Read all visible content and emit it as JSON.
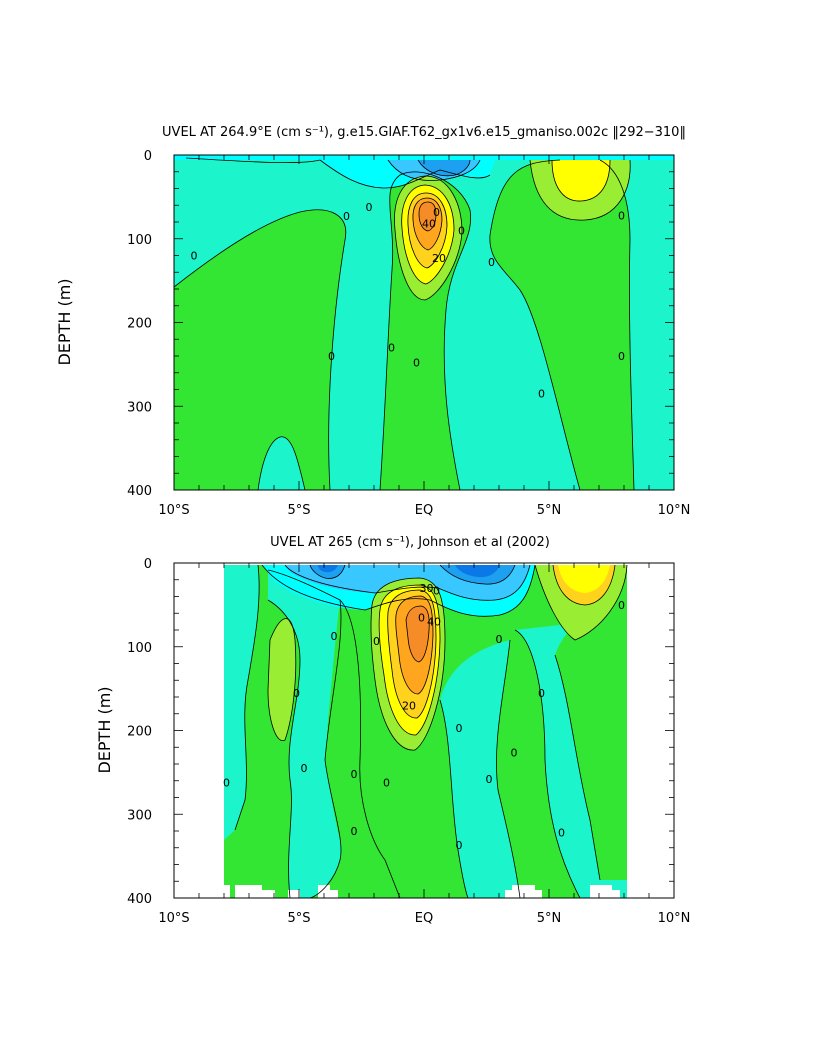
{
  "chart_data": [
    {
      "type": "heatmap",
      "title": "UVEL AT 264.9°E (cm s⁻¹), g.e15.GIAF.T62_gx1v6.e15_gmaniso.002c ‖292−310‖",
      "ylabel": "DEPTH (m)",
      "xlabel": "",
      "xlim": [
        -10,
        10
      ],
      "ylim": [
        400,
        0
      ],
      "xtick_labels": [
        "10°S",
        "5°S",
        "EQ",
        "5°N",
        "10°N"
      ],
      "ytick_labels": [
        "0",
        "100",
        "200",
        "300",
        "400"
      ],
      "contour_labels": [
        {
          "x": -9.2,
          "y": 120,
          "text": "0"
        },
        {
          "x": -3.1,
          "y": 73,
          "text": "0"
        },
        {
          "x": -2.2,
          "y": 62,
          "text": "0"
        },
        {
          "x": -1.3,
          "y": 230,
          "text": "0"
        },
        {
          "x": -0.3,
          "y": 248,
          "text": "0"
        },
        {
          "x": 1.5,
          "y": 90,
          "text": "0"
        },
        {
          "x": 2.7,
          "y": 128,
          "text": "0"
        },
        {
          "x": 4.7,
          "y": 285,
          "text": "0"
        },
        {
          "x": 7.9,
          "y": 72,
          "text": "0"
        },
        {
          "x": 7.9,
          "y": 240,
          "text": "0"
        },
        {
          "x": -3.7,
          "y": 240,
          "text": "0"
        },
        {
          "x": 0.6,
          "y": 123,
          "text": "20"
        },
        {
          "x": 0.5,
          "y": 68,
          "text": "0"
        },
        {
          "x": 0.2,
          "y": 82,
          "text": "40"
        }
      ]
    },
    {
      "type": "heatmap",
      "title": "UVEL AT 265 (cm s⁻¹), Johnson et al (2002)",
      "ylabel": "DEPTH (m)",
      "xlabel": "",
      "xlim": [
        -10,
        10
      ],
      "ylim": [
        400,
        0
      ],
      "xtick_labels": [
        "10°S",
        "5°S",
        "EQ",
        "5°N",
        "10°N"
      ],
      "ytick_labels": [
        "0",
        "100",
        "200",
        "300",
        "400"
      ],
      "contour_labels": [
        {
          "x": -5.1,
          "y": 155,
          "text": "0"
        },
        {
          "x": -7.9,
          "y": 262,
          "text": "0"
        },
        {
          "x": -3.6,
          "y": 87,
          "text": "0"
        },
        {
          "x": -4.8,
          "y": 245,
          "text": "0"
        },
        {
          "x": -2.8,
          "y": 252,
          "text": "0"
        },
        {
          "x": -2.8,
          "y": 320,
          "text": "0"
        },
        {
          "x": -1.9,
          "y": 93,
          "text": "0"
        },
        {
          "x": -1.5,
          "y": 262,
          "text": "0"
        },
        {
          "x": 0.5,
          "y": 33,
          "text": "0"
        },
        {
          "x": 0.4,
          "y": 70,
          "text": "40"
        },
        {
          "x": -0.6,
          "y": 170,
          "text": "20"
        },
        {
          "x": 1.4,
          "y": 197,
          "text": "0"
        },
        {
          "x": 1.4,
          "y": 337,
          "text": "0"
        },
        {
          "x": 2.6,
          "y": 258,
          "text": "0"
        },
        {
          "x": 3.0,
          "y": 91,
          "text": "0"
        },
        {
          "x": 3.6,
          "y": 226,
          "text": "0"
        },
        {
          "x": 4.7,
          "y": 155,
          "text": "0"
        },
        {
          "x": 5.5,
          "y": 322,
          "text": "0"
        },
        {
          "x": 7.9,
          "y": 50,
          "text": "0"
        },
        {
          "x": -0.1,
          "y": 65,
          "text": "0"
        },
        {
          "x": 0.1,
          "y": 30,
          "text": "30"
        }
      ]
    }
  ],
  "colors": {
    "cyan": "#00FFFF",
    "aquamarine": "#1CF5CC",
    "light_blue": "#38C7FF",
    "mid_blue": "#1EA0F0",
    "deep_blue": "#0A78E6",
    "green": "#33E633",
    "light_green": "#99EE33",
    "yellow": "#FFFF00",
    "gold": "#FFD21E",
    "orange": "#FFA51E",
    "dark_orange": "#F58C28"
  }
}
